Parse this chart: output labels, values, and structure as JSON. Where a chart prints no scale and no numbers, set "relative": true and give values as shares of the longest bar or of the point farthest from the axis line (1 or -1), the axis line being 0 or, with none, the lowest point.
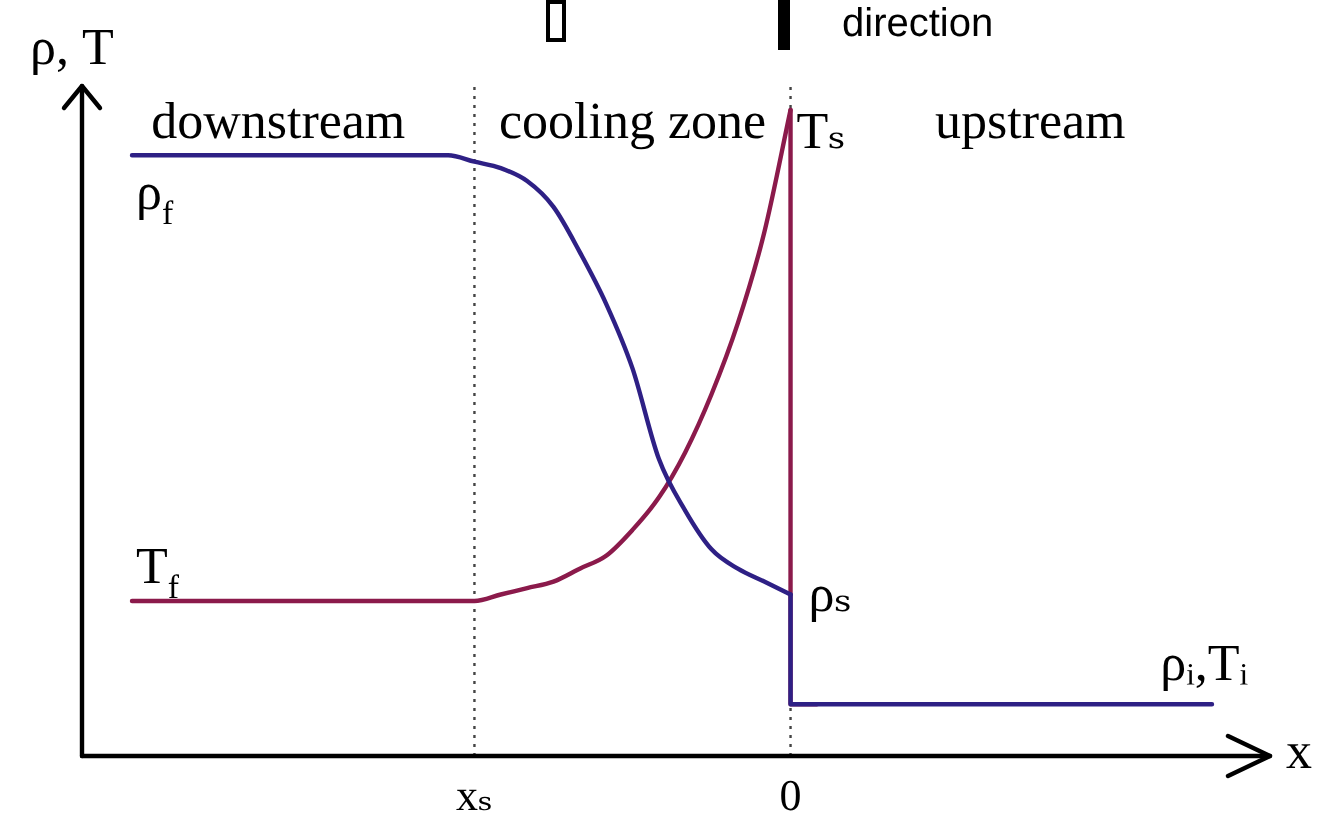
{
  "chart_data": {
    "type": "line",
    "relative": true,
    "xlabel": "x",
    "ylabel": "ρ, T",
    "categories": [
      null,
      null,
      null,
      null,
      null,
      null,
      null,
      null,
      null,
      null,
      null,
      null,
      null,
      "xₛ",
      null,
      null,
      null,
      null,
      null,
      null,
      null,
      null,
      null,
      null,
      null,
      "0",
      null,
      null,
      null,
      null,
      null,
      null,
      null,
      null,
      null,
      null,
      null,
      null,
      null,
      null,
      null,
      null
    ],
    "series": [
      {
        "color": "#2e2085",
        "values": [
          0.93,
          0.93,
          0.93,
          0.93,
          0.93,
          0.93,
          0.93,
          0.93,
          0.93,
          0.93,
          0.93,
          0.93,
          0.93,
          0.92,
          0.91,
          0.89,
          0.85,
          0.78,
          0.7,
          0.6,
          0.46,
          0.38,
          0.32,
          0.29,
          0.27,
          0.25,
          null,
          null,
          null,
          null,
          null,
          null,
          null,
          null,
          null,
          null,
          null,
          null,
          null,
          null,
          null,
          null
        ]
      },
      {
        "type": "step",
        "color": "#2e2085",
        "values": [
          null,
          null,
          null,
          null,
          null,
          null,
          null,
          null,
          null,
          null,
          null,
          null,
          null,
          null,
          null,
          null,
          null,
          null,
          null,
          null,
          null,
          null,
          null,
          null,
          null,
          0.25,
          0.08,
          0.08,
          0.08,
          0.08,
          0.08,
          0.08,
          0.08,
          0.08,
          0.08,
          0.08,
          0.08,
          0.08,
          0.08,
          0.08,
          0.08,
          0.08
        ]
      },
      {
        "color": "#8b1a4b",
        "values": [
          0.24,
          0.24,
          0.24,
          0.24,
          0.24,
          0.24,
          0.24,
          0.24,
          0.24,
          0.24,
          0.24,
          0.24,
          0.24,
          0.24,
          0.25,
          0.26,
          0.27,
          0.29,
          0.31,
          0.35,
          0.4,
          0.47,
          0.56,
          0.67,
          0.81,
          1,
          null,
          null,
          null,
          null,
          null,
          null,
          null,
          null,
          null,
          null,
          null,
          null,
          null,
          null,
          null,
          null
        ]
      },
      {
        "type": "step",
        "color": "#8b1a4b",
        "values": [
          null,
          null,
          null,
          null,
          null,
          null,
          null,
          null,
          null,
          null,
          null,
          null,
          null,
          null,
          null,
          null,
          null,
          null,
          null,
          null,
          null,
          null,
          null,
          null,
          null,
          1,
          0.08,
          null,
          null,
          null,
          null,
          null,
          null,
          null,
          null,
          null,
          null,
          null,
          null,
          null,
          null,
          null
        ]
      }
    ],
    "ref_lines": [
      {
        "axis": "x",
        "value": "xₛ",
        "color": "#444444",
        "line_style": "dotted"
      },
      {
        "axis": "x",
        "value": "0",
        "color": "#444444",
        "line_style": "dotted"
      }
    ],
    "annotations": [
      "downstream",
      "cooling zone",
      "upstream",
      "direction",
      {
        "text": "ρ$_{f}$",
        "y": 0.93
      },
      {
        "text": "T$_{f}$",
        "y": 0.24
      },
      {
        "text": "Tₛ",
        "x": "0",
        "y": 1
      },
      {
        "text": "ρₛ",
        "x": "0",
        "y": 0.25
      },
      {
        "text": "ρᵢ,Tᵢ",
        "y": 0.08
      }
    ],
    "marker": "none",
    "line_style": "solid",
    "tick_labels": "x"
  }
}
